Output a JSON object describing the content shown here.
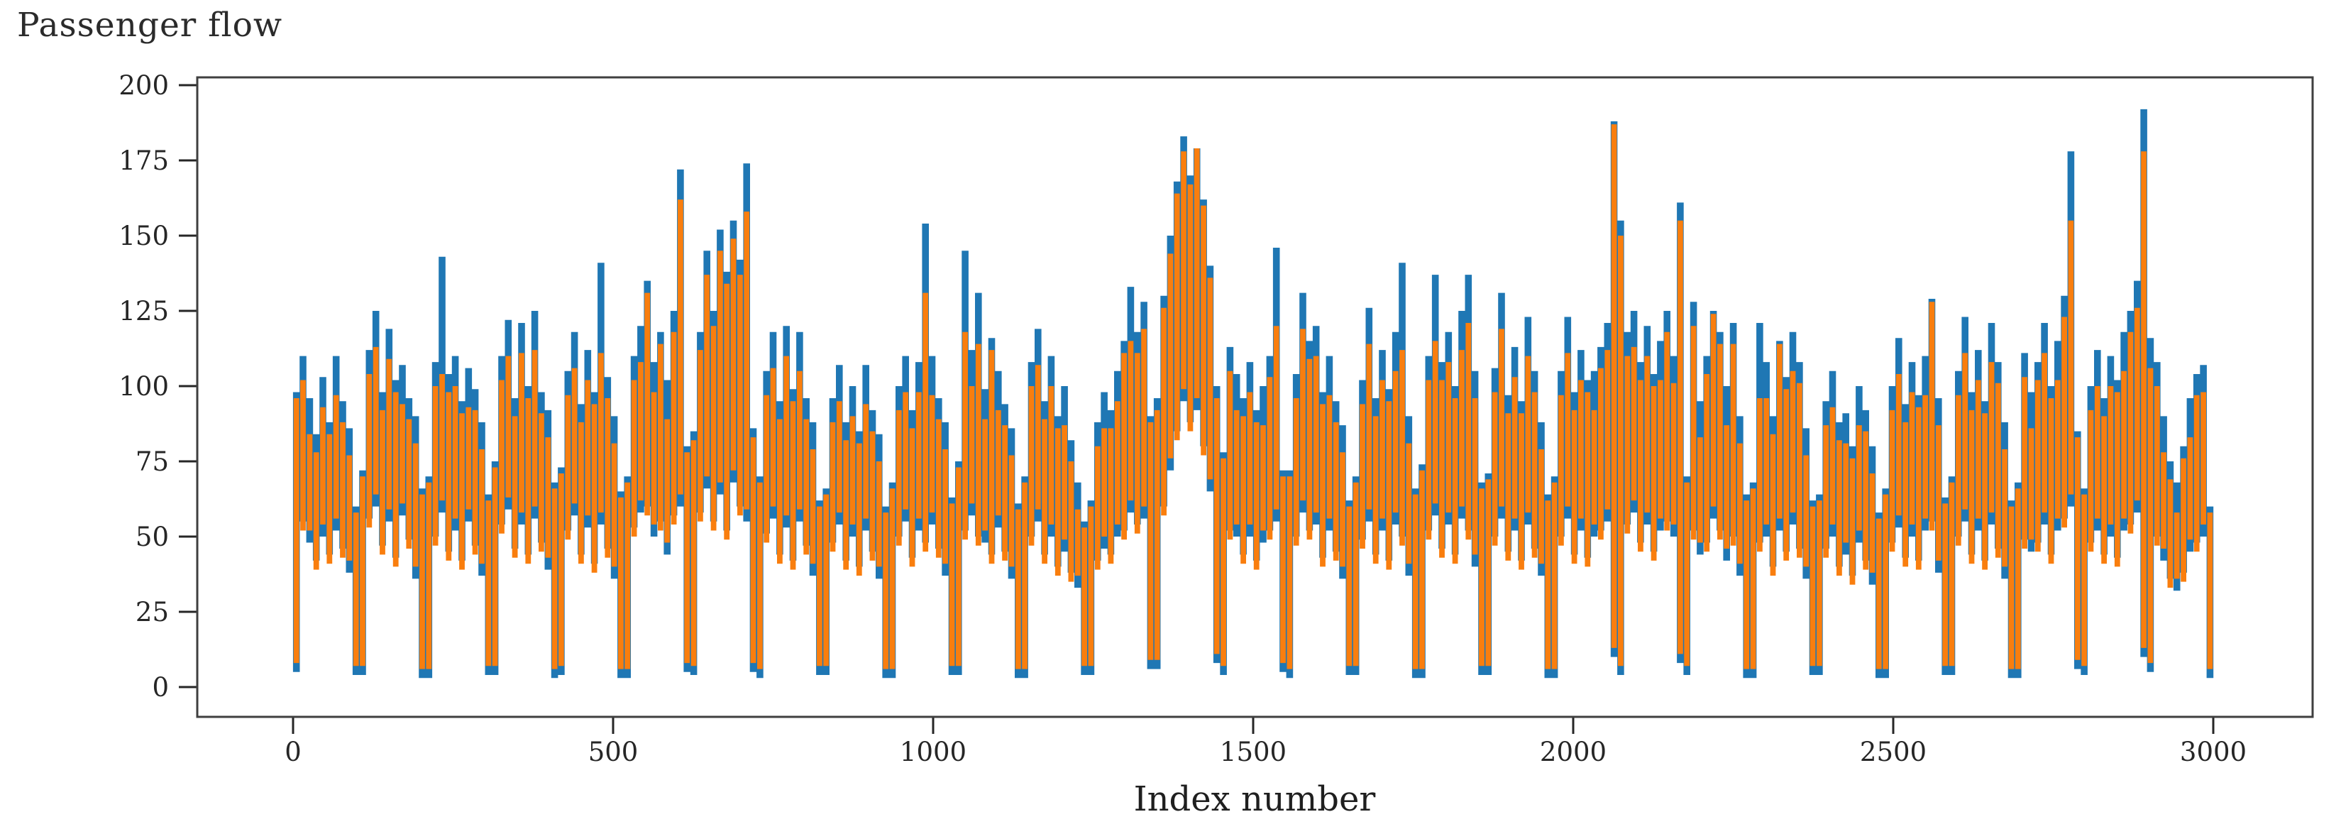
{
  "figure": {
    "background": "#ffffff"
  },
  "chart_data": {
    "type": "line",
    "title": "Passenger flow",
    "xlabel": "Index number",
    "ylabel": "",
    "legend": "none",
    "grid": false,
    "xlim": [
      -150,
      3156
    ],
    "ylim": [
      -9.9,
      202.6
    ],
    "x_ticks": [
      0,
      500,
      1000,
      1500,
      2000,
      2500,
      3000
    ],
    "y_ticks": [
      0,
      25,
      50,
      75,
      100,
      125,
      150,
      175,
      200
    ],
    "representation": "per-bin min-max envelope of two dense overlapping line series; dips to ~0 about every 103 index units",
    "x_start": 5.2,
    "x_step": 10.345,
    "series": [
      {
        "name": "blue-series",
        "color": "#1f77b4",
        "z": "behind",
        "hi": [
          98,
          110,
          96,
          84,
          103,
          88,
          110,
          95,
          86,
          60,
          72,
          112,
          125,
          98,
          119,
          102,
          107,
          96,
          90,
          66,
          70,
          108,
          143,
          104,
          110,
          95,
          106,
          99,
          88,
          64,
          75,
          110,
          122,
          96,
          121,
          100,
          125,
          98,
          92,
          68,
          73,
          105,
          118,
          94,
          112,
          98,
          141,
          103,
          90,
          65,
          70,
          110,
          120,
          135,
          108,
          118,
          102,
          125,
          172,
          80,
          85,
          118,
          145,
          125,
          152,
          138,
          155,
          142,
          174,
          86,
          70,
          105,
          118,
          95,
          120,
          99,
          118,
          96,
          88,
          62,
          66,
          96,
          107,
          88,
          100,
          85,
          107,
          92,
          84,
          60,
          68,
          100,
          110,
          92,
          108,
          154,
          110,
          96,
          88,
          63,
          75,
          145,
          112,
          131,
          99,
          116,
          105,
          94,
          86,
          61,
          70,
          108,
          119,
          95,
          110,
          90,
          100,
          82,
          68,
          55,
          62,
          88,
          98,
          92,
          105,
          115,
          133,
          118,
          128,
          90,
          96,
          130,
          150,
          168,
          183,
          170,
          179,
          162,
          140,
          100,
          78,
          113,
          104,
          96,
          108,
          92,
          100,
          110,
          146,
          72,
          72,
          104,
          131,
          115,
          120,
          98,
          110,
          95,
          87,
          62,
          70,
          102,
          126,
          96,
          112,
          99,
          118,
          141,
          90,
          66,
          74,
          110,
          137,
          108,
          118,
          100,
          125,
          137,
          105,
          68,
          71,
          106,
          131,
          97,
          113,
          95,
          123,
          105,
          88,
          64,
          70,
          105,
          123,
          98,
          112,
          102,
          105,
          113,
          121,
          188,
          155,
          118,
          125,
          108,
          120,
          104,
          115,
          125,
          110,
          161,
          70,
          128,
          95,
          110,
          125,
          118,
          100,
          121,
          90,
          64,
          68,
          121,
          108,
          90,
          115,
          103,
          118,
          108,
          86,
          62,
          64,
          95,
          105,
          88,
          91,
          80,
          100,
          92,
          80,
          58,
          66,
          100,
          116,
          94,
          108,
          97,
          110,
          129,
          96,
          63,
          70,
          105,
          123,
          98,
          112,
          95,
          121,
          108,
          88,
          62,
          68,
          111,
          98,
          108,
          121,
          100,
          115,
          130,
          178,
          85,
          66,
          100,
          112,
          96,
          110,
          102,
          118,
          125,
          135,
          192,
          116,
          108,
          90,
          75,
          68,
          80,
          96,
          104,
          107,
          60
        ],
        "lo": [
          5,
          55,
          48,
          42,
          50,
          44,
          52,
          46,
          38,
          4,
          4,
          56,
          60,
          47,
          55,
          43,
          57,
          49,
          36,
          3,
          3,
          50,
          58,
          45,
          52,
          42,
          55,
          47,
          37,
          4,
          4,
          54,
          59,
          46,
          54,
          44,
          56,
          48,
          39,
          3,
          4,
          52,
          57,
          44,
          53,
          41,
          54,
          46,
          36,
          3,
          3,
          53,
          58,
          60,
          50,
          55,
          44,
          57,
          60,
          5,
          4,
          58,
          66,
          55,
          64,
          52,
          68,
          60,
          55,
          5,
          3,
          51,
          56,
          44,
          53,
          42,
          55,
          47,
          37,
          4,
          4,
          48,
          54,
          42,
          50,
          40,
          52,
          45,
          36,
          3,
          3,
          50,
          55,
          43,
          52,
          48,
          54,
          46,
          37,
          4,
          4,
          52,
          57,
          50,
          48,
          44,
          53,
          45,
          36,
          3,
          3,
          50,
          55,
          44,
          50,
          40,
          45,
          38,
          33,
          4,
          4,
          42,
          46,
          44,
          50,
          52,
          58,
          54,
          56,
          6,
          6,
          60,
          72,
          85,
          95,
          88,
          92,
          80,
          65,
          8,
          4,
          52,
          50,
          44,
          50,
          42,
          48,
          52,
          55,
          5,
          3,
          50,
          58,
          52,
          54,
          43,
          52,
          45,
          36,
          4,
          4,
          49,
          55,
          44,
          52,
          42,
          54,
          50,
          37,
          3,
          3,
          52,
          57,
          46,
          54,
          44,
          56,
          52,
          40,
          4,
          4,
          50,
          56,
          45,
          52,
          42,
          54,
          46,
          37,
          3,
          3,
          50,
          56,
          44,
          52,
          43,
          50,
          52,
          55,
          10,
          4,
          54,
          58,
          48,
          54,
          45,
          52,
          55,
          50,
          8,
          4,
          52,
          44,
          48,
          56,
          52,
          42,
          50,
          37,
          3,
          3,
          48,
          50,
          40,
          52,
          45,
          54,
          46,
          36,
          4,
          4,
          46,
          50,
          40,
          44,
          37,
          48,
          42,
          34,
          3,
          3,
          48,
          53,
          43,
          50,
          42,
          52,
          55,
          38,
          4,
          4,
          50,
          55,
          44,
          52,
          42,
          54,
          46,
          36,
          3,
          3,
          49,
          45,
          48,
          54,
          44,
          52,
          56,
          60,
          6,
          4,
          48,
          52,
          44,
          50,
          43,
          52,
          54,
          58,
          10,
          5,
          50,
          42,
          36,
          32,
          38,
          45,
          48,
          50,
          3
        ]
      },
      {
        "name": "orange-series",
        "color": "#f97e0e",
        "z": "front",
        "hi": [
          96,
          102,
          84,
          78,
          93,
          84,
          97,
          88,
          77,
          58,
          70,
          104,
          113,
          92,
          109,
          98,
          94,
          89,
          81,
          64,
          68,
          100,
          104,
          98,
          100,
          91,
          93,
          92,
          79,
          62,
          73,
          102,
          110,
          90,
          111,
          96,
          112,
          91,
          83,
          66,
          71,
          97,
          106,
          88,
          102,
          94,
          111,
          96,
          81,
          63,
          68,
          102,
          108,
          131,
          98,
          114,
          89,
          118,
          162,
          78,
          82,
          112,
          137,
          120,
          145,
          134,
          149,
          137,
          158,
          83,
          68,
          97,
          106,
          89,
          110,
          95,
          105,
          89,
          79,
          60,
          64,
          88,
          95,
          82,
          90,
          81,
          94,
          85,
          75,
          58,
          66,
          92,
          98,
          86,
          98,
          131,
          97,
          89,
          79,
          61,
          73,
          118,
          100,
          114,
          89,
          112,
          92,
          87,
          77,
          59,
          68,
          100,
          107,
          89,
          100,
          86,
          87,
          75,
          59,
          53,
          60,
          80,
          86,
          86,
          95,
          111,
          115,
          111,
          119,
          88,
          92,
          126,
          144,
          164,
          178,
          167,
          179,
          160,
          136,
          96,
          76,
          105,
          92,
          90,
          98,
          88,
          87,
          103,
          120,
          70,
          70,
          96,
          119,
          109,
          110,
          94,
          97,
          88,
          78,
          60,
          68,
          94,
          114,
          90,
          102,
          95,
          105,
          112,
          81,
          64,
          72,
          102,
          115,
          102,
          108,
          96,
          112,
          121,
          96,
          66,
          69,
          98,
          119,
          91,
          103,
          91,
          110,
          98,
          79,
          62,
          68,
          97,
          111,
          92,
          102,
          98,
          92,
          106,
          112,
          187,
          150,
          110,
          113,
          102,
          110,
          100,
          102,
          118,
          101,
          155,
          68,
          120,
          83,
          104,
          124,
          114,
          87,
          114,
          81,
          62,
          66,
          96,
          96,
          84,
          114,
          99,
          105,
          101,
          77,
          60,
          62,
          87,
          93,
          82,
          81,
          76,
          87,
          85,
          71,
          56,
          64,
          92,
          104,
          88,
          98,
          93,
          97,
          128,
          87,
          61,
          68,
          97,
          111,
          92,
          102,
          91,
          108,
          101,
          79,
          60,
          66,
          103,
          86,
          102,
          111,
          96,
          102,
          123,
          155,
          83,
          64,
          92,
          100,
          90,
          100,
          98,
          105,
          118,
          126,
          178,
          106,
          100,
          78,
          69,
          58,
          76,
          83,
          97,
          98,
          58
        ],
        "lo": [
          8,
          52,
          52,
          39,
          54,
          41,
          56,
          43,
          42,
          7,
          7,
          53,
          64,
          44,
          59,
          40,
          61,
          46,
          40,
          6,
          6,
          47,
          62,
          42,
          56,
          39,
          59,
          44,
          41,
          7,
          7,
          51,
          63,
          43,
          58,
          41,
          60,
          45,
          43,
          6,
          7,
          49,
          61,
          41,
          57,
          38,
          58,
          43,
          40,
          6,
          6,
          50,
          62,
          57,
          54,
          52,
          48,
          54,
          64,
          8,
          7,
          55,
          70,
          52,
          68,
          49,
          72,
          57,
          59,
          8,
          6,
          48,
          60,
          41,
          57,
          39,
          59,
          44,
          41,
          7,
          7,
          45,
          58,
          39,
          54,
          37,
          56,
          42,
          40,
          6,
          6,
          47,
          59,
          40,
          56,
          45,
          58,
          43,
          41,
          7,
          7,
          49,
          61,
          47,
          52,
          41,
          57,
          42,
          40,
          6,
          6,
          47,
          59,
          41,
          54,
          37,
          49,
          35,
          37,
          7,
          7,
          39,
          50,
          41,
          54,
          49,
          62,
          51,
          60,
          9,
          9,
          57,
          76,
          82,
          99,
          85,
          96,
          77,
          69,
          11,
          7,
          49,
          54,
          41,
          54,
          39,
          52,
          49,
          59,
          8,
          6,
          47,
          62,
          49,
          58,
          40,
          56,
          42,
          40,
          7,
          7,
          46,
          59,
          41,
          56,
          39,
          58,
          47,
          41,
          6,
          6,
          49,
          61,
          43,
          58,
          41,
          60,
          49,
          44,
          7,
          7,
          47,
          60,
          42,
          56,
          39,
          58,
          43,
          41,
          6,
          6,
          47,
          60,
          41,
          56,
          40,
          54,
          49,
          59,
          13,
          7,
          51,
          62,
          45,
          58,
          42,
          56,
          52,
          54,
          11,
          7,
          49,
          48,
          45,
          60,
          49,
          46,
          47,
          41,
          6,
          6,
          45,
          54,
          37,
          56,
          42,
          58,
          43,
          40,
          7,
          7,
          43,
          54,
          37,
          48,
          34,
          52,
          39,
          38,
          6,
          6,
          45,
          57,
          40,
          54,
          39,
          56,
          52,
          42,
          7,
          7,
          47,
          59,
          41,
          56,
          39,
          58,
          43,
          40,
          6,
          6,
          46,
          49,
          45,
          58,
          41,
          56,
          53,
          64,
          9,
          7,
          45,
          56,
          41,
          54,
          40,
          56,
          51,
          62,
          13,
          8,
          47,
          46,
          33,
          36,
          35,
          49,
          45,
          54,
          6
        ]
      }
    ]
  }
}
